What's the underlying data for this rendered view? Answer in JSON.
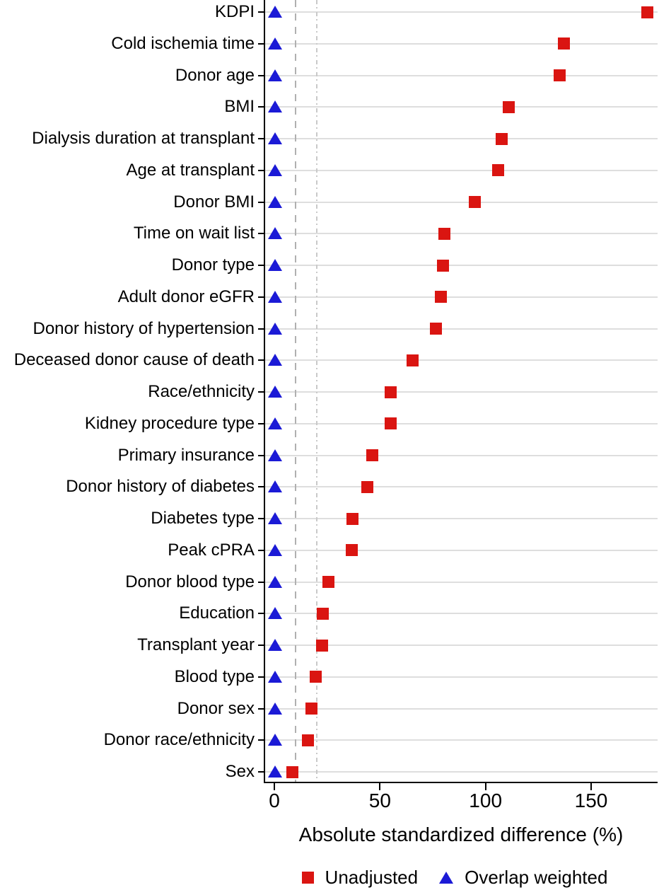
{
  "chart_data": {
    "type": "scatter",
    "orientation": "horizontal",
    "title": "",
    "xlabel": "Absolute standardized difference (%)",
    "ylabel": "",
    "xlim": [
      0,
      182
    ],
    "x_ticks": [
      0,
      50,
      100,
      150
    ],
    "reference_lines_x": [
      10,
      20
    ],
    "grid": "horizontal-row-lines",
    "legend_position": "bottom",
    "categories": [
      "KDPI",
      "Cold ischemia time",
      "Donor age",
      "BMI",
      "Dialysis duration at transplant",
      "Age at transplant",
      "Donor BMI",
      "Time on wait list",
      "Donor type",
      "Adult donor eGFR",
      "Donor history of hypertension",
      "Deceased donor cause of death",
      "Race/ethnicity",
      "Kidney procedure type",
      "Primary insurance",
      "Donor history of diabetes",
      "Diabetes type",
      "Peak cPRA",
      "Donor blood type",
      "Education",
      "Transplant year",
      "Blood type",
      "Donor sex",
      "Donor race/ethnicity",
      "Sex"
    ],
    "series": [
      {
        "name": "Unadjusted",
        "marker": "square",
        "color": "#da1511",
        "values": [
          176.5,
          137,
          135,
          111,
          107.5,
          106,
          95,
          80.5,
          80,
          79,
          76.5,
          65.5,
          55,
          55,
          46.5,
          44,
          37,
          36.5,
          25.5,
          23,
          22.5,
          19.5,
          17.5,
          16,
          8.5
        ]
      },
      {
        "name": "Overlap weighted",
        "marker": "triangle",
        "color": "#1b1ad6",
        "values": [
          0.5,
          0.5,
          0.5,
          0.5,
          0.5,
          0.5,
          0.5,
          0.5,
          0.5,
          0.5,
          0.5,
          0.5,
          0.5,
          0.5,
          0.5,
          0.5,
          0.5,
          0.5,
          0.5,
          0.5,
          0.5,
          0.5,
          0.5,
          0.5,
          0.5
        ]
      }
    ]
  },
  "colors": {
    "unadjusted": "#da1511",
    "overlap_weighted": "#1b1ad6",
    "gridline": "#dedede",
    "reference_line_10": "#b0b0b0",
    "reference_line_20": "#c9c9c9",
    "axis": "#000000",
    "background": "#ffffff"
  }
}
